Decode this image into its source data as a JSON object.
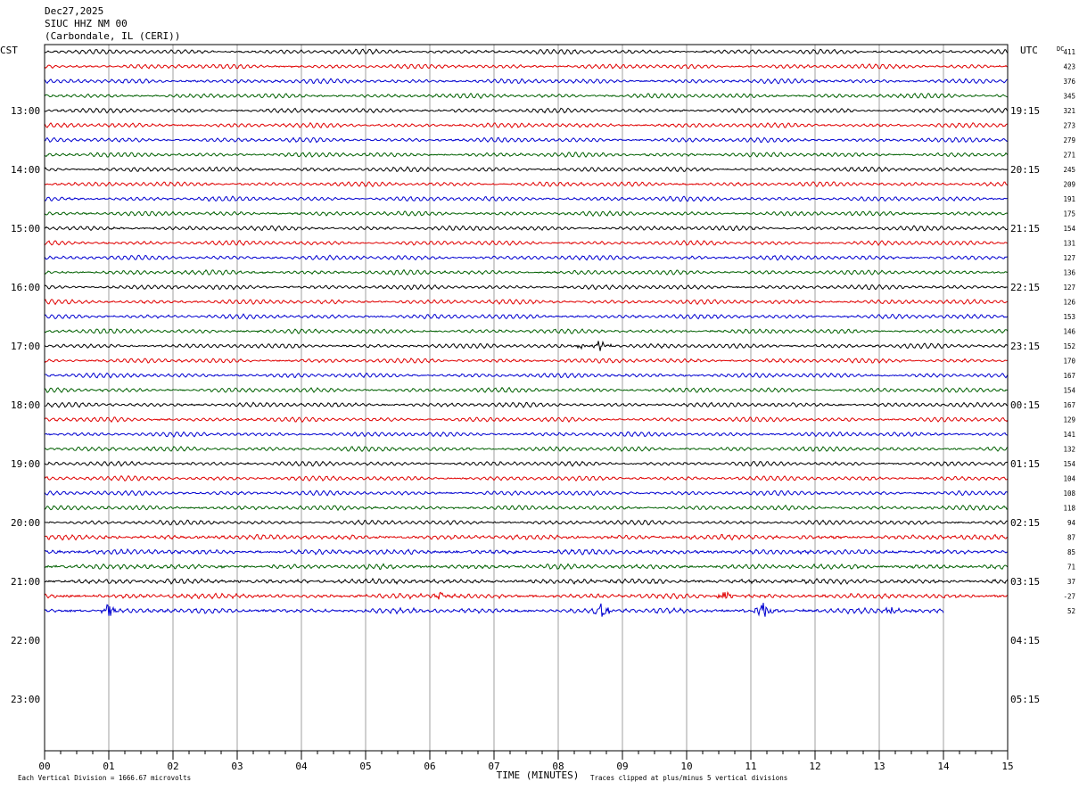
{
  "header": {
    "date": "Dec27,2025",
    "station": "SIUC HHZ NM 00",
    "location": "(Carbondale, IL (CERI))"
  },
  "left_timezone": "CST",
  "right_timezone": "UTC",
  "dc_label": "DC",
  "footer": {
    "vertical_division": "Each Vertical Division = 1666.67 microvolts",
    "xlabel": "TIME (MINUTES)",
    "clip_note": "Traces clipped at plus/minus 5 vertical divisions"
  },
  "colors": {
    "cycle": [
      "#000000",
      "#e00000",
      "#0000d0",
      "#006000"
    ],
    "grid": "#888888",
    "frame": "#000000"
  },
  "chart_data": {
    "type": "line",
    "title": "SIUC HHZ NM 00",
    "xlabel": "TIME (MINUTES)",
    "xlim": [
      0,
      15
    ],
    "x_ticks": [
      "00",
      "01",
      "02",
      "03",
      "04",
      "05",
      "06",
      "07",
      "08",
      "09",
      "10",
      "11",
      "12",
      "13",
      "14",
      "15"
    ],
    "row_minutes": 15,
    "rows_total": 48,
    "left_hour_labels": [
      "13:00",
      "14:00",
      "15:00",
      "16:00",
      "17:00",
      "18:00",
      "19:00",
      "20:00",
      "21:00",
      "22:00",
      "23:00"
    ],
    "right_hour_labels": [
      "19:15",
      "20:15",
      "21:15",
      "22:15",
      "23:15",
      "00:15",
      "01:15",
      "02:15",
      "03:15",
      "04:15",
      "05:15"
    ],
    "traces_dc": [
      411,
      423,
      376,
      345,
      321,
      273,
      279,
      271,
      245,
      209,
      191,
      175,
      154,
      131,
      127,
      136,
      127,
      126,
      153,
      146,
      152,
      170,
      167,
      154,
      167,
      129,
      141,
      132,
      154,
      104,
      108,
      118,
      94,
      87,
      85,
      71,
      37,
      -27,
      52
    ],
    "last_trace_end_minute": 14,
    "events": [
      {
        "trace": 20,
        "minute": 8.35,
        "amp": 0.5
      },
      {
        "trace": 20,
        "minute": 8.65,
        "amp": 1.4
      },
      {
        "trace": 37,
        "minute": 6.15,
        "amp": 0.6
      },
      {
        "trace": 37,
        "minute": 10.6,
        "amp": 1.0
      },
      {
        "trace": 38,
        "minute": 1.0,
        "amp": 1.3
      },
      {
        "trace": 38,
        "minute": 8.7,
        "amp": 2.2
      },
      {
        "trace": 38,
        "minute": 11.2,
        "amp": 1.8
      },
      {
        "trace": 38,
        "minute": 13.2,
        "amp": 0.8
      }
    ]
  }
}
